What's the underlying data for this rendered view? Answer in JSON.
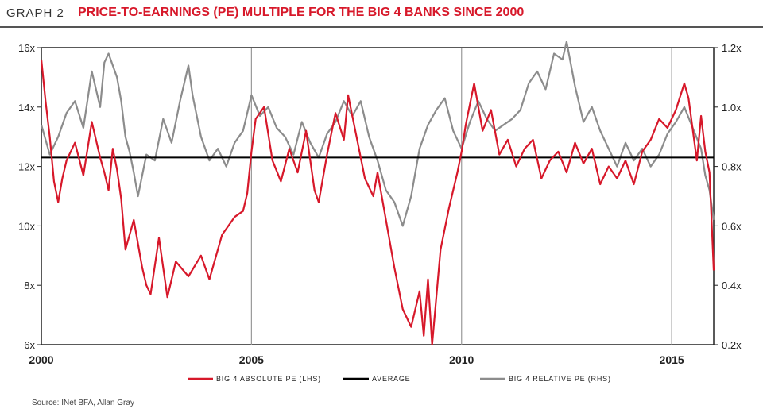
{
  "header": {
    "graph_label": "GRAPH 2",
    "title": "PRICE-TO-EARNINGS (PE) MULTIPLE FOR THE BIG 4 BANKS SINCE 2000"
  },
  "source": "Source: INet BFA, Allan Gray",
  "colors": {
    "absolute": "#d7182a",
    "relative": "#8c8c8c",
    "average": "#000000",
    "title": "#d7182a"
  },
  "chart_data": {
    "type": "line",
    "title": "PRICE-TO-EARNINGS (PE) MULTIPLE FOR THE BIG 4 BANKS SINCE 2000",
    "x_range": [
      2000.0,
      2016.0
    ],
    "x_ticks": [
      2000,
      2005,
      2010,
      2015
    ],
    "x_tick_labels": [
      "2000",
      "2005",
      "2010",
      "2015"
    ],
    "y_left": {
      "range": [
        6,
        16
      ],
      "ticks": [
        6,
        8,
        10,
        12,
        14,
        16
      ],
      "tick_labels": [
        "6x",
        "8x",
        "10x",
        "12x",
        "14x",
        "16x"
      ]
    },
    "y_right": {
      "range": [
        0.2,
        1.2
      ],
      "ticks": [
        0.2,
        0.4,
        0.6,
        0.8,
        1.0,
        1.2
      ],
      "tick_labels": [
        "0.2x",
        "0.4x",
        "0.6x",
        "0.8x",
        "1.0x",
        "1.2x"
      ]
    },
    "vertical_gridlines": [
      2005,
      2010,
      2015
    ],
    "average": 12.3,
    "legend_position": "bottom",
    "series": [
      {
        "name": "BIG 4 ABSOLUTE PE (LHS)",
        "axis": "left",
        "x": [
          2000.0,
          2000.1,
          2000.2,
          2000.3,
          2000.4,
          2000.5,
          2000.6,
          2000.8,
          2001.0,
          2001.2,
          2001.4,
          2001.5,
          2001.6,
          2001.7,
          2001.8,
          2001.9,
          2002.0,
          2002.2,
          2002.4,
          2002.5,
          2002.6,
          2002.8,
          2002.9,
          2003.0,
          2003.2,
          2003.5,
          2003.8,
          2004.0,
          2004.3,
          2004.6,
          2004.8,
          2004.9,
          2005.0,
          2005.1,
          2005.3,
          2005.5,
          2005.7,
          2005.9,
          2006.1,
          2006.3,
          2006.5,
          2006.6,
          2006.8,
          2007.0,
          2007.2,
          2007.3,
          2007.5,
          2007.7,
          2007.9,
          2008.0,
          2008.2,
          2008.4,
          2008.6,
          2008.8,
          2009.0,
          2009.1,
          2009.2,
          2009.3,
          2009.5,
          2009.7,
          2009.9,
          2010.0,
          2010.1,
          2010.3,
          2010.5,
          2010.7,
          2010.9,
          2011.1,
          2011.3,
          2011.5,
          2011.7,
          2011.9,
          2012.1,
          2012.3,
          2012.5,
          2012.7,
          2012.9,
          2013.1,
          2013.3,
          2013.5,
          2013.7,
          2013.9,
          2014.1,
          2014.3,
          2014.5,
          2014.7,
          2014.9,
          2015.1,
          2015.3,
          2015.4,
          2015.6,
          2015.7,
          2015.8,
          2015.9,
          2016.0
        ],
        "values": [
          15.6,
          14.2,
          13.0,
          11.5,
          10.8,
          11.6,
          12.2,
          12.8,
          11.7,
          13.5,
          12.3,
          11.8,
          11.2,
          12.6,
          11.9,
          10.9,
          9.2,
          10.2,
          8.6,
          8.0,
          7.7,
          9.6,
          8.6,
          7.6,
          8.8,
          8.3,
          9.0,
          8.2,
          9.7,
          10.3,
          10.5,
          11.1,
          12.5,
          13.6,
          14.0,
          12.2,
          11.5,
          12.6,
          11.8,
          13.2,
          11.2,
          10.8,
          12.4,
          13.8,
          12.9,
          14.4,
          13.0,
          11.6,
          11.0,
          11.8,
          10.2,
          8.6,
          7.2,
          6.6,
          7.8,
          6.3,
          8.2,
          6.0,
          9.2,
          10.6,
          11.8,
          12.5,
          13.4,
          14.8,
          13.2,
          13.9,
          12.4,
          12.9,
          12.0,
          12.6,
          12.9,
          11.6,
          12.2,
          12.5,
          11.8,
          12.8,
          12.1,
          12.6,
          11.4,
          12.0,
          11.6,
          12.2,
          11.4,
          12.5,
          12.9,
          13.6,
          13.3,
          13.9,
          14.8,
          14.3,
          12.2,
          13.7,
          12.5,
          11.8,
          8.5
        ]
      },
      {
        "name": "AVERAGE",
        "axis": "left",
        "x": [
          2000.0,
          2016.0
        ],
        "values": [
          12.3,
          12.3
        ]
      },
      {
        "name": "BIG 4 RELATIVE PE (RHS)",
        "axis": "right",
        "x": [
          2000.0,
          2000.2,
          2000.4,
          2000.6,
          2000.8,
          2001.0,
          2001.2,
          2001.4,
          2001.5,
          2001.6,
          2001.8,
          2001.9,
          2002.0,
          2002.1,
          2002.2,
          2002.3,
          2002.5,
          2002.7,
          2002.9,
          2003.1,
          2003.3,
          2003.5,
          2003.6,
          2003.8,
          2004.0,
          2004.2,
          2004.4,
          2004.6,
          2004.8,
          2005.0,
          2005.2,
          2005.4,
          2005.6,
          2005.8,
          2006.0,
          2006.2,
          2006.4,
          2006.6,
          2006.8,
          2007.0,
          2007.2,
          2007.4,
          2007.6,
          2007.8,
          2008.0,
          2008.2,
          2008.4,
          2008.6,
          2008.8,
          2009.0,
          2009.2,
          2009.4,
          2009.6,
          2009.8,
          2010.0,
          2010.2,
          2010.4,
          2010.6,
          2010.8,
          2011.0,
          2011.2,
          2011.4,
          2011.6,
          2011.8,
          2012.0,
          2012.2,
          2012.4,
          2012.5,
          2012.7,
          2012.9,
          2013.1,
          2013.3,
          2013.5,
          2013.7,
          2013.9,
          2014.1,
          2014.3,
          2014.5,
          2014.7,
          2014.9,
          2015.1,
          2015.3,
          2015.5,
          2015.7,
          2015.8,
          2015.9,
          2016.0
        ],
        "values": [
          0.94,
          0.84,
          0.9,
          0.98,
          1.02,
          0.93,
          1.12,
          1.0,
          1.15,
          1.18,
          1.1,
          1.02,
          0.9,
          0.85,
          0.78,
          0.7,
          0.84,
          0.82,
          0.96,
          0.88,
          1.02,
          1.14,
          1.04,
          0.9,
          0.82,
          0.86,
          0.8,
          0.88,
          0.92,
          1.04,
          0.97,
          1.0,
          0.93,
          0.9,
          0.84,
          0.95,
          0.88,
          0.83,
          0.91,
          0.95,
          1.02,
          0.97,
          1.02,
          0.9,
          0.82,
          0.72,
          0.68,
          0.6,
          0.7,
          0.86,
          0.94,
          0.99,
          1.03,
          0.92,
          0.86,
          0.95,
          1.02,
          0.96,
          0.92,
          0.94,
          0.96,
          0.99,
          1.08,
          1.12,
          1.06,
          1.18,
          1.16,
          1.22,
          1.07,
          0.95,
          1.0,
          0.92,
          0.86,
          0.8,
          0.88,
          0.82,
          0.86,
          0.8,
          0.84,
          0.91,
          0.95,
          1.0,
          0.93,
          0.86,
          0.77,
          0.72,
          0.62
        ]
      }
    ]
  }
}
